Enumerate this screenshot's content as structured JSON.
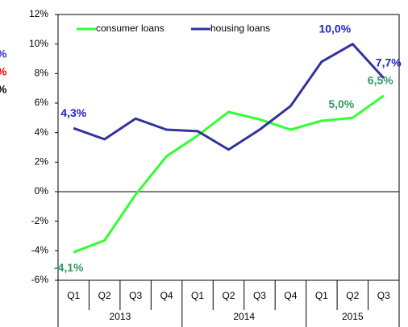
{
  "chart_data": {
    "type": "line",
    "categories": [
      "Q1",
      "Q2",
      "Q3",
      "Q4",
      "Q1",
      "Q2",
      "Q3",
      "Q4",
      "Q1",
      "Q2",
      "Q3"
    ],
    "groups": [
      {
        "label": "2013",
        "span": 4
      },
      {
        "label": "2014",
        "span": 4
      },
      {
        "label": "2015",
        "span": 3
      }
    ],
    "series": [
      {
        "name": "consumer loans",
        "color": "#33ff33",
        "label_color": "#339966",
        "values": [
          -4.1,
          -3.3,
          -0.2,
          2.4,
          3.8,
          5.4,
          4.9,
          4.2,
          4.8,
          5.0,
          6.5
        ],
        "value_labels": [
          "-4,1%",
          null,
          null,
          null,
          null,
          null,
          null,
          null,
          null,
          "5,0%",
          "6,5%"
        ]
      },
      {
        "name": "housing loans",
        "color": "#333399",
        "label_color": "#2222cc",
        "values": [
          4.3,
          3.55,
          4.95,
          4.2,
          4.1,
          2.85,
          4.2,
          5.8,
          8.8,
          10.0,
          7.7
        ],
        "value_labels": [
          "4,3%",
          null,
          null,
          null,
          null,
          null,
          null,
          null,
          null,
          "10,0%",
          "7,7%"
        ]
      }
    ],
    "ylim": [
      -6,
      12
    ],
    "yticks": [
      {
        "value": -6,
        "label": "-6%"
      },
      {
        "value": -4,
        "label": "-4%"
      },
      {
        "value": -2,
        "label": "-2%"
      },
      {
        "value": 0,
        "label": "0%"
      },
      {
        "value": 2,
        "label": "2%"
      },
      {
        "value": 4,
        "label": "4%"
      },
      {
        "value": 6,
        "label": "6%"
      },
      {
        "value": 8,
        "label": "8%"
      },
      {
        "value": 10,
        "label": "10%"
      },
      {
        "value": 12,
        "label": "12%"
      }
    ],
    "legend": "top-left",
    "side_labels": [
      {
        "text": "%",
        "color": "#3333cc"
      },
      {
        "text": "%",
        "color": "#ff0000"
      },
      {
        "text": "%",
        "color": "#000000"
      }
    ]
  }
}
